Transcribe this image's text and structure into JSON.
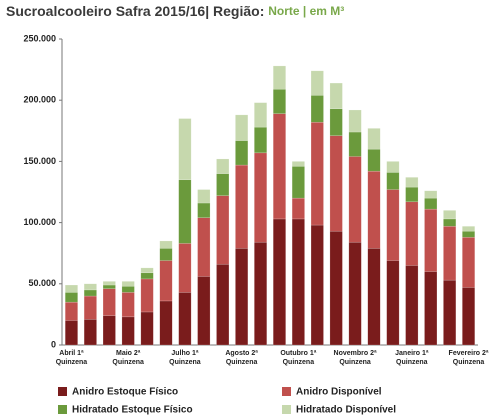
{
  "chart_data": {
    "type": "stacked_bar",
    "title": "Sucroalcooleiro Safra 2015/16| Região:",
    "subtitle": "Norte | em M³",
    "categories": [
      "Abril 1ª Quinzena",
      null,
      null,
      "Maio 2ª Quinzena",
      null,
      null,
      "Julho 1ª Quinzena",
      null,
      null,
      "Agosto 2ª Quinzena",
      null,
      null,
      "Outubro 1ª Quinzena",
      null,
      null,
      "Novembro 2ª Quinzena",
      null,
      null,
      "Janeiro 1ª Quinzena",
      null,
      null,
      "Fevereiro 2ª Quinzena"
    ],
    "series": [
      {
        "name": "Anidro Estoque Físico",
        "color": "#7a1c1c",
        "values": [
          20000,
          21000,
          24000,
          23000,
          27000,
          36000,
          43000,
          56000,
          66000,
          79000,
          84000,
          103000,
          103000,
          98000,
          93000,
          84000,
          79000,
          69000,
          65000,
          60000,
          53000,
          47000
        ]
      },
      {
        "name": "Anidro Disponível",
        "color": "#c0504d",
        "values": [
          15000,
          19000,
          22000,
          20000,
          27000,
          33000,
          40000,
          48000,
          56000,
          68000,
          73000,
          86000,
          17000,
          84000,
          78000,
          70000,
          63000,
          58000,
          52000,
          51000,
          44000,
          41000
        ]
      },
      {
        "name": "Hidratado Estoque Físico",
        "color": "#6b9a3c",
        "values": [
          8000,
          5000,
          3000,
          5000,
          5000,
          10000,
          52000,
          12000,
          18000,
          20000,
          21000,
          20000,
          26000,
          22000,
          22000,
          20000,
          18000,
          14000,
          12000,
          9000,
          6000,
          5000
        ]
      },
      {
        "name": "Hidratado Disponível",
        "color": "#c6d8ad",
        "values": [
          6000,
          5000,
          3000,
          4000,
          4000,
          6000,
          50000,
          11000,
          12000,
          21000,
          20000,
          19000,
          4000,
          20000,
          21000,
          18000,
          17000,
          9000,
          8000,
          6000,
          7000,
          4000
        ]
      }
    ],
    "ylim": [
      0,
      250000
    ],
    "yticks": [
      0,
      {
        "value": 50000,
        "label": "50.000"
      },
      {
        "value": 100000,
        "label": "100.000"
      },
      {
        "value": 150000,
        "label": "150.000"
      },
      {
        "value": 200000,
        "label": "200.000"
      },
      {
        "value": 250000,
        "label": "250.000"
      }
    ],
    "grid": false
  }
}
